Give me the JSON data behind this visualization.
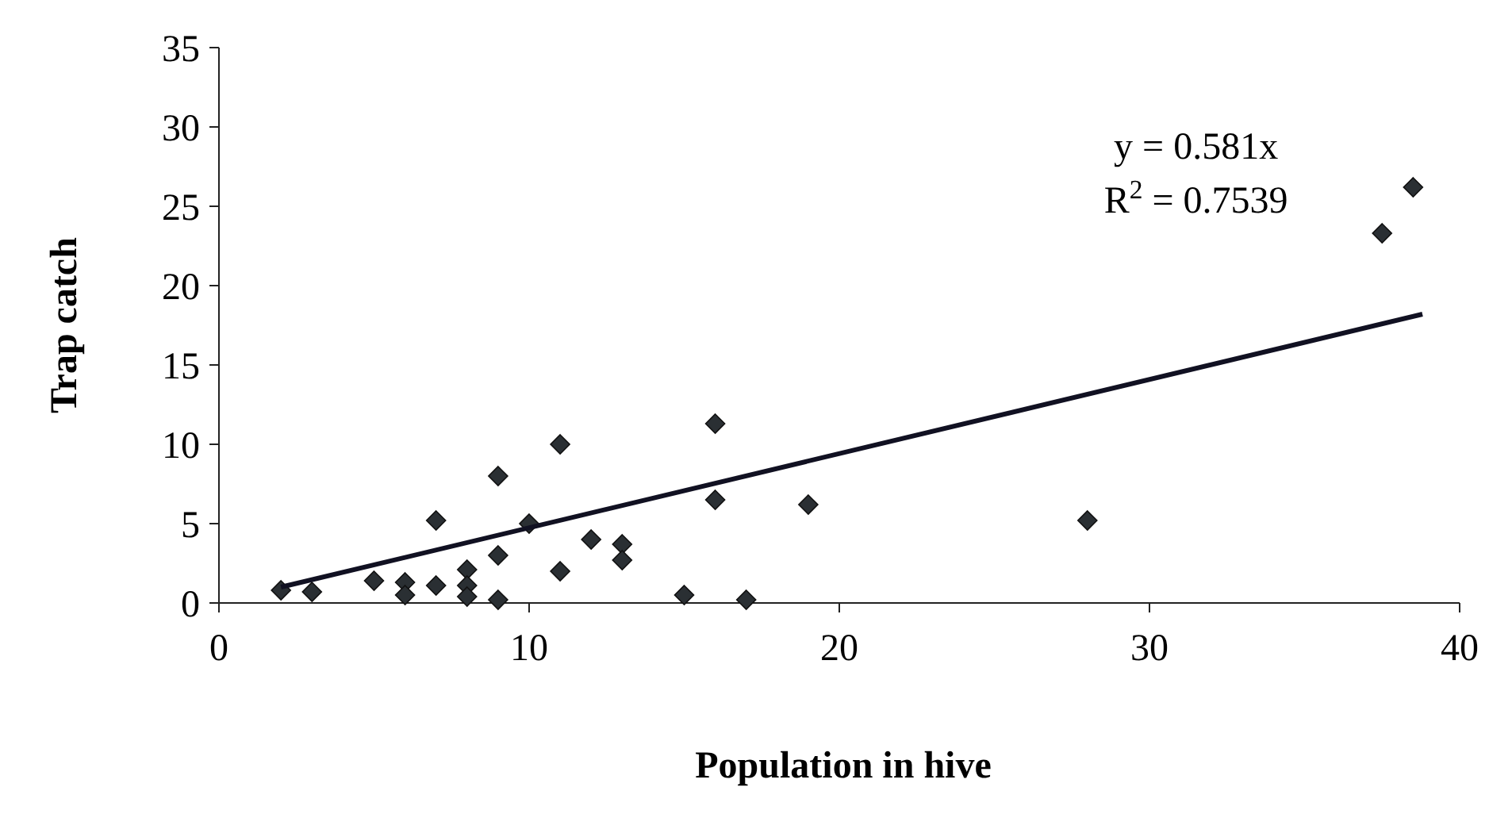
{
  "chart_data": {
    "type": "scatter",
    "xlabel": "Population in hive",
    "ylabel": "Trap catch",
    "xlim": [
      0,
      40
    ],
    "xticks": [
      0,
      10,
      20,
      30,
      40
    ],
    "ylim": [
      0,
      35
    ],
    "yticks": [
      0,
      5,
      10,
      15,
      20,
      25,
      30,
      35
    ],
    "grid": false,
    "series": [
      {
        "color": "#2a2f33",
        "marker": "diamond",
        "x": [
          2,
          3,
          5,
          6,
          6,
          7,
          7,
          8,
          8,
          8,
          9,
          9,
          9,
          10,
          11,
          11,
          12,
          13,
          13,
          15,
          16,
          16,
          17,
          19,
          28,
          37.5,
          38.5
        ],
        "values": [
          0.8,
          0.7,
          1.4,
          1.3,
          0.5,
          1.1,
          5.2,
          2.1,
          1.1,
          0.4,
          0.2,
          3,
          8,
          5,
          2,
          10,
          4,
          3.7,
          2.7,
          0.5,
          6.5,
          11.3,
          0.2,
          6.2,
          5.2,
          23.3,
          26.2
        ]
      },
      {
        "type": "line",
        "color": "#111122",
        "x": [
          2,
          38.8
        ],
        "values": [
          1,
          18.2
        ],
        "line_style": "solid",
        "marker": "none"
      }
    ],
    "annotations": [
      "y = 0.581x",
      "R$^{2}$ = 0.7539"
    ]
  }
}
